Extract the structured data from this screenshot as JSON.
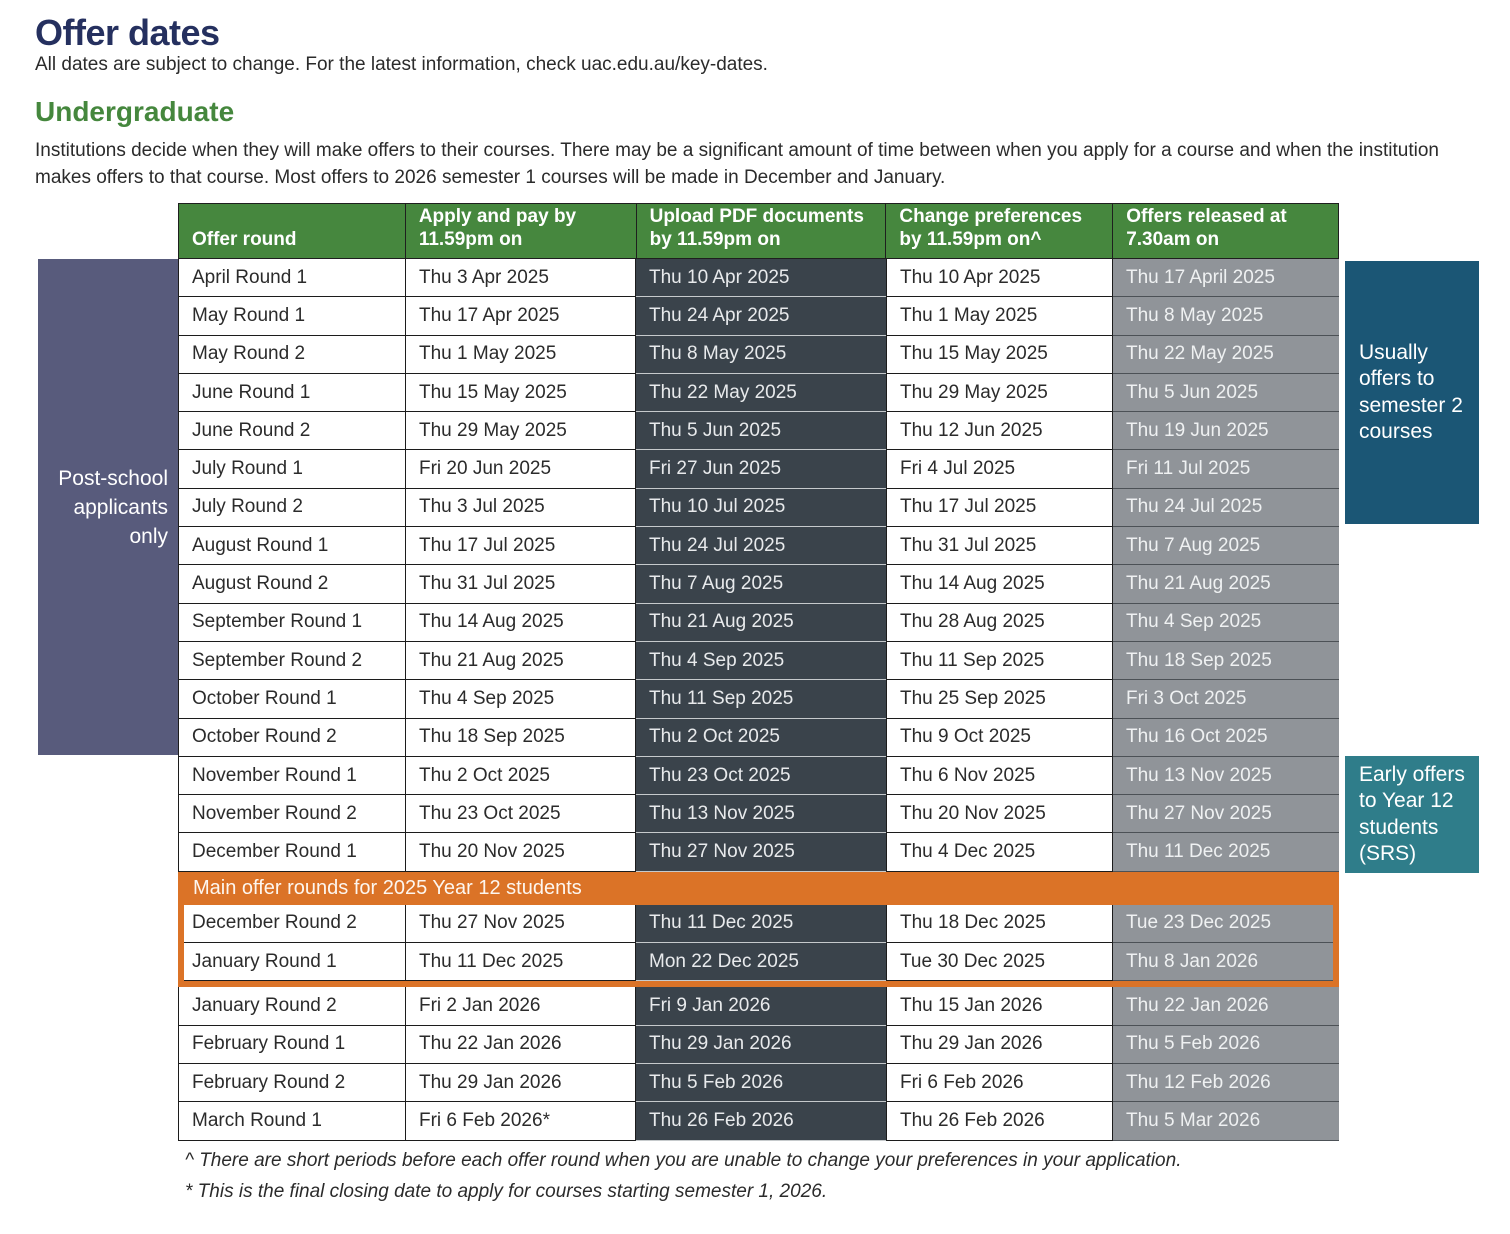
{
  "page": {
    "title": "Offer dates",
    "subtitle": "All dates are subject to change. For the latest information, check uac.edu.au/key-dates.",
    "section_heading": "Undergraduate",
    "intro": "Institutions decide when they will make offers to their courses. There may be a significant amount of time between when you apply for a course and when the institution makes offers to that course. Most offers to 2026 semester 1 courses will be made in December and January."
  },
  "table": {
    "columns": [
      "Offer round",
      "Apply and pay by 11.59pm on",
      "Upload PDF documents by 11.59pm on",
      "Change preferences by 11.59pm on^",
      "Offers released at 7.30am on"
    ],
    "pre": [
      [
        "April Round 1",
        "Thu 3 Apr 2025",
        "Thu 10 Apr 2025",
        "Thu 10 Apr 2025",
        "Thu 17 April 2025"
      ],
      [
        "May Round 1",
        "Thu 17 Apr 2025",
        "Thu 24 Apr 2025",
        "Thu 1 May 2025",
        "Thu 8 May 2025"
      ],
      [
        "May Round 2",
        "Thu 1 May 2025",
        "Thu 8 May 2025",
        "Thu 15 May 2025",
        "Thu 22 May 2025"
      ],
      [
        "June Round 1",
        "Thu 15 May 2025",
        "Thu 22 May 2025",
        "Thu 29 May 2025",
        "Thu 5 Jun 2025"
      ],
      [
        "June Round 2",
        "Thu 29 May 2025",
        "Thu 5 Jun 2025",
        "Thu 12 Jun 2025",
        "Thu 19 Jun 2025"
      ],
      [
        "July Round 1",
        "Fri 20 Jun 2025",
        "Fri 27 Jun 2025",
        "Fri 4 Jul 2025",
        "Fri 11 Jul 2025"
      ],
      [
        "July Round 2",
        "Thu 3 Jul 2025",
        "Thu 10 Jul 2025",
        "Thu 17 Jul 2025",
        "Thu 24 Jul 2025"
      ],
      [
        "August Round 1",
        "Thu 17 Jul 2025",
        "Thu 24 Jul 2025",
        "Thu 31 Jul 2025",
        "Thu 7 Aug 2025"
      ],
      [
        "August Round 2",
        "Thu 31 Jul 2025",
        "Thu 7 Aug 2025",
        "Thu 14 Aug 2025",
        "Thu 21 Aug 2025"
      ],
      [
        "September Round 1",
        "Thu 14 Aug 2025",
        "Thu 21 Aug 2025",
        "Thu 28 Aug 2025",
        "Thu 4 Sep 2025"
      ],
      [
        "September Round 2",
        "Thu 21 Aug 2025",
        "Thu 4 Sep 2025",
        "Thu 11 Sep 2025",
        "Thu 18 Sep 2025"
      ],
      [
        "October Round 1",
        "Thu 4 Sep 2025",
        "Thu 11 Sep 2025",
        "Thu 25 Sep 2025",
        "Fri 3 Oct 2025"
      ],
      [
        "October Round 2",
        "Thu 18 Sep 2025",
        "Thu 2 Oct 2025",
        "Thu 9 Oct 2025",
        "Thu 16 Oct 2025"
      ],
      [
        "November Round 1",
        "Thu 2 Oct 2025",
        "Thu 23 Oct 2025",
        "Thu 6 Nov 2025",
        "Thu 13 Nov 2025"
      ],
      [
        "November Round 2",
        "Thu 23 Oct 2025",
        "Thu 13 Nov 2025",
        "Thu 20 Nov 2025",
        "Thu 27 Nov 2025"
      ],
      [
        "December Round 1",
        "Thu 20 Nov 2025",
        "Thu 27 Nov 2025",
        "Thu 4 Dec 2025",
        "Thu 11 Dec 2025"
      ]
    ],
    "main": [
      [
        "December Round 2",
        "Thu 27 Nov 2025",
        "Thu 11 Dec 2025",
        "Thu 18 Dec 2025",
        "Tue 23 Dec 2025"
      ],
      [
        "January Round 1",
        "Thu 11 Dec 2025",
        "Mon 22 Dec 2025",
        "Tue 30 Dec 2025",
        "Thu 8 Jan 2026"
      ]
    ],
    "post": [
      [
        "January Round 2",
        "Fri 2 Jan 2026",
        "Fri 9 Jan 2026",
        "Thu 15 Jan 2026",
        "Thu 22 Jan 2026"
      ],
      [
        "February Round 1",
        "Thu 22 Jan 2026",
        "Thu 29 Jan 2026",
        "Thu 29 Jan 2026",
        "Thu 5 Feb 2026"
      ],
      [
        "February Round 2",
        "Thu 29 Jan 2026",
        "Thu 5 Feb 2026",
        "Fri 6 Feb 2026",
        "Thu 12 Feb 2026"
      ],
      [
        "March Round 1",
        "Fri 6 Feb 2026*",
        "Thu 26 Feb 2026",
        "Thu 26 Feb 2026",
        "Thu 5 Mar 2026"
      ]
    ]
  },
  "banner": {
    "label": "Main offer rounds for 2025 Year 12 students"
  },
  "annotations": {
    "post_school": "Post-school applicants only",
    "semester2": "Usually offers to semester 2 courses",
    "srs": "Early offers to Year 12 students (SRS)"
  },
  "footnotes": [
    "^ There are short periods before each offer round when you are unable to change your preferences in your application.",
    "* This is the final closing date to apply for courses starting semester 1, 2026."
  ],
  "colors": {
    "header_green": "#46873e",
    "heading_green": "#45873d",
    "title_navy": "#25305f",
    "dark_cell": "#3a434b",
    "gray_cell": "#909499",
    "post_school_purple": "#585b7c",
    "semester2_blue": "#1b5675",
    "srs_teal": "#2f7d8a",
    "banner_orange": "#db7327"
  }
}
